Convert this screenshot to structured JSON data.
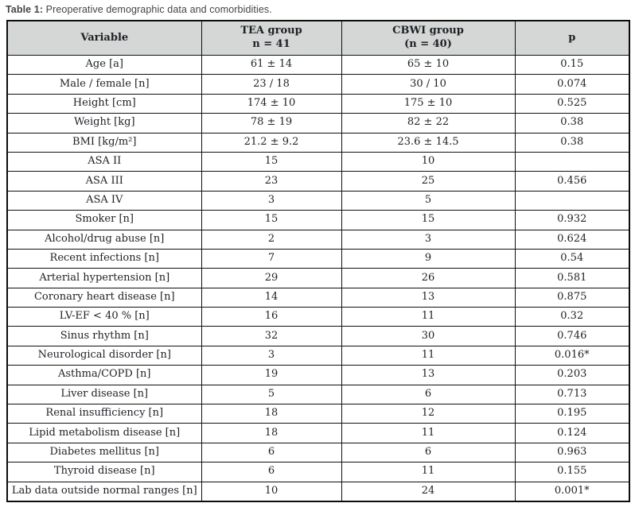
{
  "caption": {
    "label": "Table 1:",
    "text": " Preoperative demographic data and comorbidities."
  },
  "colors": {
    "header_background": "#d4d7d5",
    "border": "#101010",
    "body_text": "#1f2026",
    "caption_text": "#454545"
  },
  "table": {
    "headers": [
      {
        "line1": "Variable",
        "line2": ""
      },
      {
        "line1": "TEA group",
        "line2": "n = 41"
      },
      {
        "line1": "CBWI group",
        "line2": "(n = 40)"
      },
      {
        "line1": "p",
        "line2": ""
      }
    ],
    "rows": [
      {
        "variable": "Age [a]",
        "tea": "61 ± 14",
        "cbwi": "65 ± 10",
        "p": "0.15"
      },
      {
        "variable": "Male / female [n]",
        "tea": "23 / 18",
        "cbwi": "30 / 10",
        "p": "0.074"
      },
      {
        "variable": "Height [cm]",
        "tea": "174 ± 10",
        "cbwi": "175 ± 10",
        "p": "0.525"
      },
      {
        "variable": "Weight [kg]",
        "tea": "78 ± 19",
        "cbwi": "82 ± 22",
        "p": "0.38"
      },
      {
        "variable": "BMI [kg/m²]",
        "tea": "21.2 ± 9.2",
        "cbwi": "23.6 ± 14.5",
        "p": "0.38"
      },
      {
        "variable": "ASA II",
        "tea": "15",
        "cbwi": "10",
        "p": ""
      },
      {
        "variable": "ASA III",
        "tea": "23",
        "cbwi": "25",
        "p": "0.456"
      },
      {
        "variable": "ASA IV",
        "tea": "3",
        "cbwi": "5",
        "p": ""
      },
      {
        "variable": "Smoker [n]",
        "tea": "15",
        "cbwi": "15",
        "p": "0.932"
      },
      {
        "variable": "Alcohol/drug abuse [n]",
        "tea": "2",
        "cbwi": "3",
        "p": "0.624"
      },
      {
        "variable": "Recent infections [n]",
        "tea": "7",
        "cbwi": "9",
        "p": "0.54"
      },
      {
        "variable": "Arterial hypertension [n]",
        "tea": "29",
        "cbwi": "26",
        "p": "0.581"
      },
      {
        "variable": "Coronary heart disease [n]",
        "tea": "14",
        "cbwi": "13",
        "p": "0.875"
      },
      {
        "variable": "LV-EF < 40 % [n]",
        "tea": "16",
        "cbwi": "11",
        "p": "0.32"
      },
      {
        "variable": "Sinus rhythm [n]",
        "tea": "32",
        "cbwi": "30",
        "p": "0.746"
      },
      {
        "variable": "Neurological disorder [n]",
        "tea": "3",
        "cbwi": "11",
        "p": "0.016*"
      },
      {
        "variable": "Asthma/COPD [n]",
        "tea": "19",
        "cbwi": "13",
        "p": "0.203"
      },
      {
        "variable": "Liver disease [n]",
        "tea": "5",
        "cbwi": "6",
        "p": "0.713"
      },
      {
        "variable": "Renal insufficiency [n]",
        "tea": "18",
        "cbwi": "12",
        "p": "0.195"
      },
      {
        "variable": "Lipid metabolism disease [n]",
        "tea": "18",
        "cbwi": "11",
        "p": "0.124"
      },
      {
        "variable": "Diabetes mellitus [n]",
        "tea": "6",
        "cbwi": "6",
        "p": "0.963"
      },
      {
        "variable": "Thyroid disease [n]",
        "tea": "6",
        "cbwi": "11",
        "p": "0.155"
      },
      {
        "variable": "Lab data outside normal ranges [n]",
        "tea": "10",
        "cbwi": "24",
        "p": "0.001*"
      }
    ]
  }
}
